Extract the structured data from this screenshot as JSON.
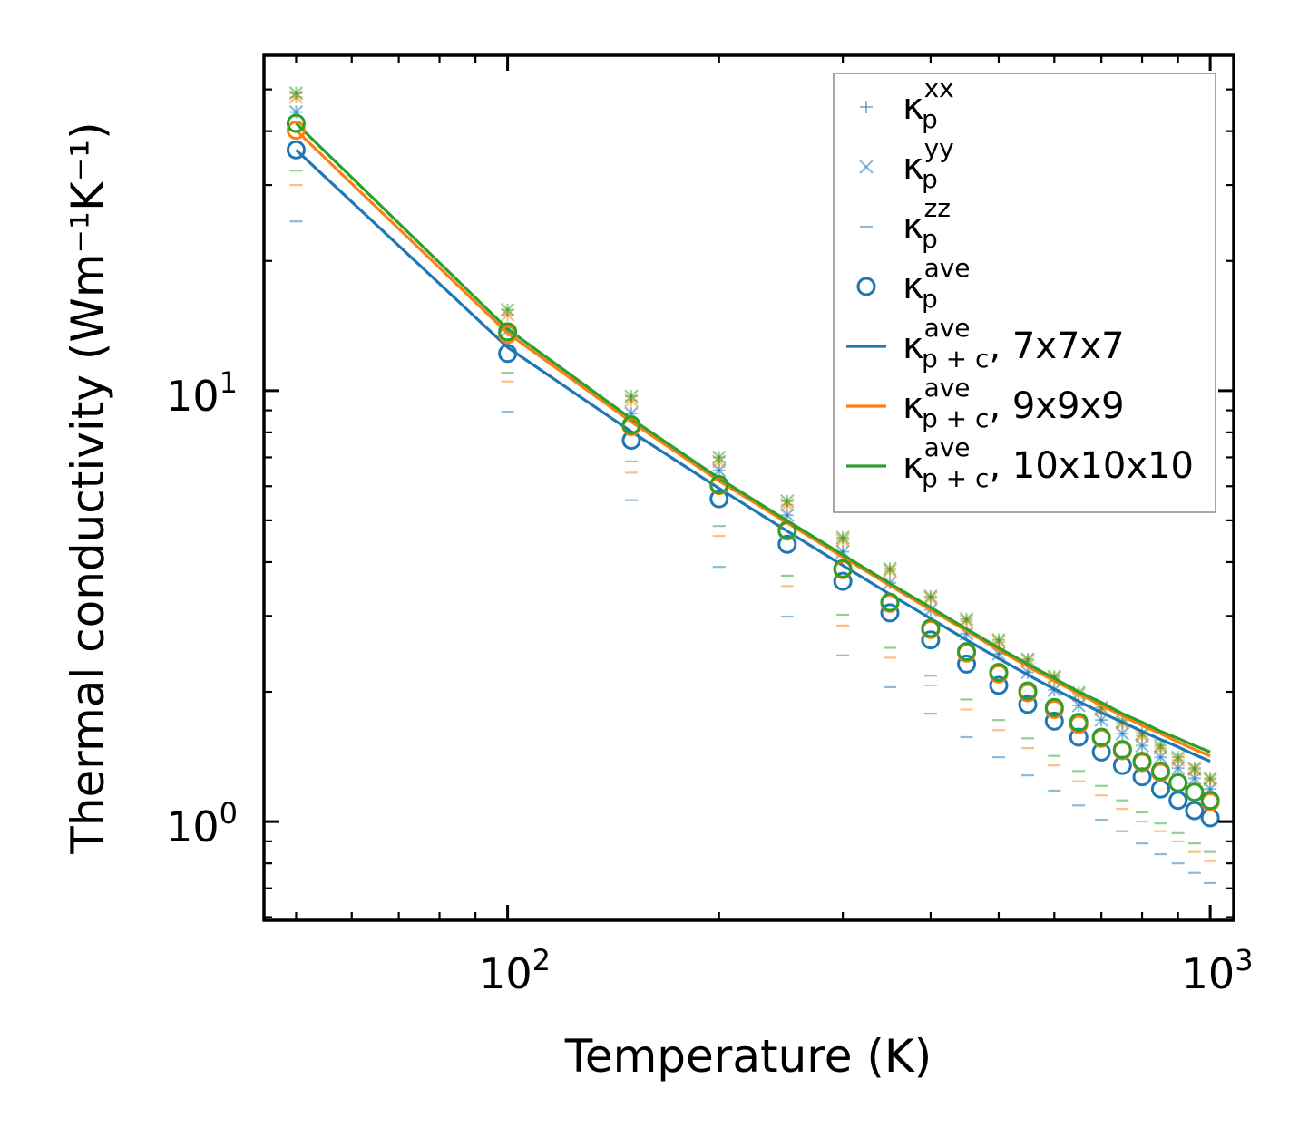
{
  "chart_data": {
    "type": "scatter",
    "xscale": "log",
    "yscale": "log",
    "xlim": [
      45,
      1080
    ],
    "ylim": [
      0.59,
      60
    ],
    "xlabel": "Temperature (K)",
    "ylabel": "Thermal conductivity (Wm⁻¹K⁻¹)",
    "xticks": [
      {
        "base": "10",
        "exp": "2",
        "value": 100
      },
      {
        "base": "10",
        "exp": "3",
        "value": 1000
      }
    ],
    "yticks": [
      {
        "base": "10",
        "exp": "0",
        "value": 1
      },
      {
        "base": "10",
        "exp": "1",
        "value": 10
      }
    ],
    "grid": false,
    "legend_position": "top-right",
    "colors": {
      "blue": "#1f77b4",
      "orange": "#ff7f0e",
      "green": "#2ca02c"
    },
    "temperatures": [
      50,
      100,
      150,
      200,
      250,
      300,
      350,
      400,
      450,
      500,
      550,
      600,
      650,
      700,
      750,
      800,
      850,
      900,
      950,
      1000
    ],
    "legend": [
      {
        "sym": "κ",
        "sub": "p",
        "sup": "xx",
        "suffix": "",
        "marker": "plus"
      },
      {
        "sym": "κ",
        "sub": "p",
        "sup": "yy",
        "suffix": "",
        "marker": "x"
      },
      {
        "sym": "κ",
        "sub": "p",
        "sup": "zz",
        "suffix": "",
        "marker": "dash"
      },
      {
        "sym": "κ",
        "sub": "p",
        "sup": "ave",
        "suffix": "",
        "marker": "circle"
      },
      {
        "sym": "κ",
        "sub": "p + c",
        "sup": "ave",
        "suffix": ", 7x7x7",
        "marker": "line",
        "color": "#1f77b4"
      },
      {
        "sym": "κ",
        "sub": "p + c",
        "sup": "ave",
        "suffix": ", 9x9x9",
        "marker": "line",
        "color": "#ff7f0e"
      },
      {
        "sym": "κ",
        "sub": "p + c",
        "sup": "ave",
        "suffix": ", 10x10x10",
        "marker": "line",
        "color": "#2ca02c"
      }
    ],
    "series": [
      {
        "name": "7x7x7",
        "color": "#1f77b4",
        "kxx": [
          44.3,
          13.8,
          8.85,
          6.53,
          5.14,
          4.23,
          3.58,
          3.1,
          2.73,
          2.45,
          2.22,
          2.02,
          1.86,
          1.72,
          1.6,
          1.5,
          1.41,
          1.33,
          1.26,
          1.19
        ],
        "kyy": [
          44.3,
          13.8,
          8.85,
          6.53,
          5.14,
          4.23,
          3.58,
          3.1,
          2.73,
          2.45,
          2.22,
          2.02,
          1.86,
          1.72,
          1.6,
          1.5,
          1.41,
          1.33,
          1.26,
          1.19
        ],
        "kzz": [
          24.7,
          8.93,
          5.57,
          3.9,
          2.99,
          2.43,
          2.05,
          1.78,
          1.57,
          1.41,
          1.28,
          1.18,
          1.09,
          1.01,
          0.95,
          0.89,
          0.84,
          0.8,
          0.76,
          0.72
        ],
        "kave": [
          36.2,
          12.2,
          7.67,
          5.61,
          4.4,
          3.61,
          3.05,
          2.64,
          2.32,
          2.07,
          1.87,
          1.71,
          1.57,
          1.45,
          1.35,
          1.27,
          1.19,
          1.12,
          1.06,
          1.02
        ],
        "total": [
          36.2,
          12.6,
          8.03,
          5.93,
          4.72,
          3.93,
          3.37,
          2.96,
          2.64,
          2.39,
          2.19,
          2.03,
          1.9,
          1.79,
          1.7,
          1.62,
          1.55,
          1.49,
          1.43,
          1.38
        ]
      },
      {
        "name": "9x9x9",
        "color": "#ff7f0e",
        "kxx": [
          48.0,
          15.0,
          9.5,
          6.85,
          5.44,
          4.5,
          3.82,
          3.3,
          2.92,
          2.61,
          2.36,
          2.15,
          1.97,
          1.82,
          1.69,
          1.58,
          1.48,
          1.39,
          1.32,
          1.25
        ],
        "kyy": [
          48.0,
          15.0,
          9.5,
          6.85,
          5.44,
          4.5,
          3.82,
          3.3,
          2.92,
          2.61,
          2.36,
          2.15,
          1.97,
          1.82,
          1.69,
          1.58,
          1.48,
          1.39,
          1.32,
          1.25
        ],
        "kzz": [
          30.0,
          10.5,
          6.45,
          4.6,
          3.52,
          2.85,
          2.4,
          2.07,
          1.82,
          1.63,
          1.48,
          1.35,
          1.24,
          1.15,
          1.07,
          1.0,
          0.95,
          0.9,
          0.85,
          0.81
        ],
        "kave": [
          40.2,
          13.5,
          8.25,
          6.02,
          4.72,
          3.84,
          3.21,
          2.79,
          2.46,
          2.2,
          1.99,
          1.82,
          1.68,
          1.56,
          1.46,
          1.37,
          1.3,
          1.23,
          1.17,
          1.11
        ],
        "total": [
          40.2,
          13.6,
          8.46,
          6.17,
          4.93,
          4.11,
          3.53,
          3.1,
          2.77,
          2.5,
          2.29,
          2.12,
          1.98,
          1.86,
          1.76,
          1.67,
          1.6,
          1.53,
          1.47,
          1.42
        ]
      },
      {
        "name": "10x10x10",
        "color": "#2ca02c",
        "kxx": [
          49.0,
          15.4,
          9.7,
          7.0,
          5.54,
          4.56,
          3.86,
          3.33,
          2.95,
          2.64,
          2.38,
          2.17,
          1.99,
          1.84,
          1.71,
          1.6,
          1.5,
          1.41,
          1.33,
          1.26
        ],
        "kyy": [
          49.0,
          15.4,
          9.7,
          7.0,
          5.54,
          4.56,
          3.86,
          3.33,
          2.95,
          2.64,
          2.38,
          2.17,
          1.99,
          1.84,
          1.71,
          1.6,
          1.5,
          1.41,
          1.33,
          1.26
        ],
        "kzz": [
          32.4,
          11.0,
          6.85,
          4.85,
          3.72,
          3.02,
          2.53,
          2.18,
          1.92,
          1.72,
          1.56,
          1.42,
          1.31,
          1.21,
          1.12,
          1.05,
          0.99,
          0.94,
          0.89,
          0.85
        ],
        "kave": [
          41.7,
          13.7,
          8.32,
          6.05,
          4.74,
          3.86,
          3.23,
          2.81,
          2.48,
          2.22,
          2.01,
          1.84,
          1.7,
          1.57,
          1.47,
          1.38,
          1.31,
          1.23,
          1.17,
          1.12
        ],
        "total": [
          41.7,
          13.9,
          8.6,
          6.26,
          4.99,
          4.16,
          3.57,
          3.14,
          2.8,
          2.53,
          2.32,
          2.15,
          2.0,
          1.89,
          1.78,
          1.7,
          1.62,
          1.56,
          1.5,
          1.45
        ]
      }
    ]
  }
}
